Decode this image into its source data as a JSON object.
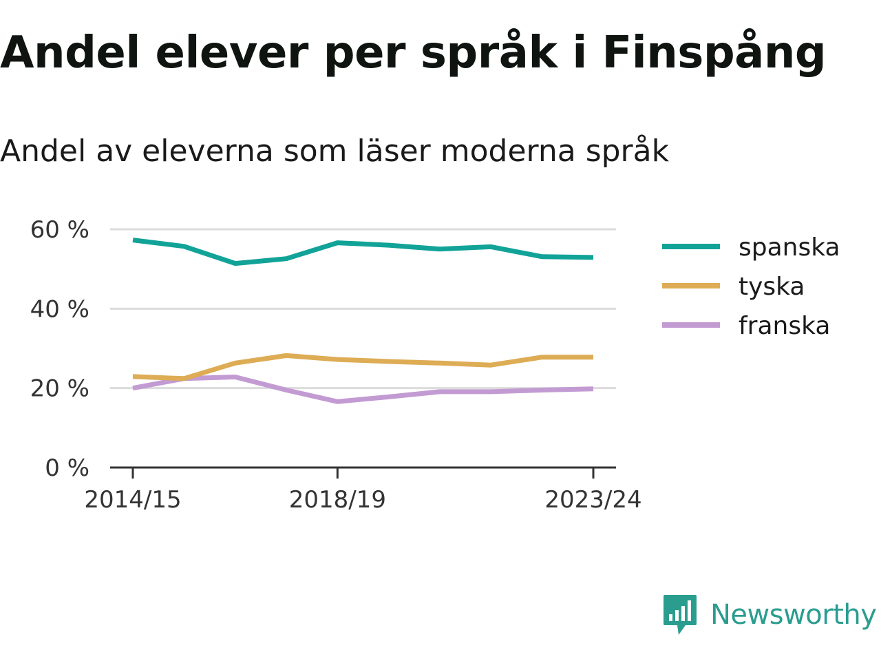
{
  "title": "Andel elever per språk i Finspång",
  "subtitle": "Andel av eleverna som läser moderna språk",
  "brand": {
    "name": "Newsworthy",
    "icon": "bar-chart-speech-bubble-icon",
    "color": "#2a9d8f"
  },
  "chart_data": {
    "type": "line",
    "x": [
      "2014/15",
      "2015/16",
      "2016/17",
      "2017/18",
      "2018/19",
      "2019/20",
      "2020/21",
      "2021/22",
      "2022/23",
      "2023/24"
    ],
    "x_tick_labels": [
      "2014/15",
      "2018/19",
      "2023/24"
    ],
    "ylim": [
      0,
      60
    ],
    "y_ticks": [
      0,
      20,
      40,
      60
    ],
    "y_tick_labels": [
      "0 %",
      "20 %",
      "40 %",
      "60 %"
    ],
    "grid": true,
    "legend_position": "right",
    "series": [
      {
        "name": "spanska",
        "color": "#12a398",
        "values": [
          57.3,
          55.7,
          51.4,
          52.6,
          56.6,
          56.0,
          55.0,
          55.6,
          53.1,
          52.9
        ]
      },
      {
        "name": "tyska",
        "color": "#ddac55",
        "values": [
          22.9,
          22.4,
          26.3,
          28.2,
          27.2,
          26.7,
          26.3,
          25.8,
          27.8,
          27.8
        ]
      },
      {
        "name": "franska",
        "color": "#c39bd3",
        "values": [
          20.0,
          22.4,
          22.8,
          19.5,
          16.6,
          17.8,
          19.1,
          19.1,
          19.5,
          19.8
        ]
      }
    ]
  }
}
